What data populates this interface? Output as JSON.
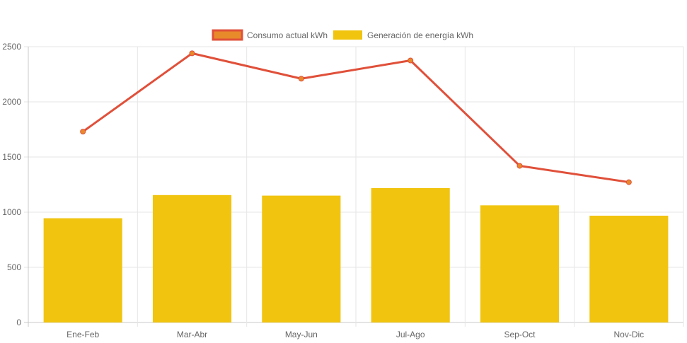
{
  "chart_data": {
    "type": "bar",
    "categories": [
      "Ene-Feb",
      "Mar-Abr",
      "May-Jun",
      "Jul-Ago",
      "Sep-Oct",
      "Nov-Dic"
    ],
    "series": [
      {
        "name": "Consumo actual kWh",
        "type": "line",
        "values": [
          1730,
          2440,
          2210,
          2375,
          1420,
          1272
        ],
        "color": "#e0503a",
        "legend_fill": "#e88a2a"
      },
      {
        "name": "Generación de energía kWh",
        "type": "bar",
        "values": [
          945,
          1155,
          1150,
          1218,
          1062,
          968
        ],
        "color": "#f1c40f"
      }
    ],
    "title": "",
    "xlabel": "",
    "ylabel": "",
    "ylim": [
      0,
      2500
    ],
    "yticks": [
      0,
      500,
      1000,
      1500,
      2000,
      2500
    ],
    "grid": true,
    "legend_position": "top-center"
  }
}
